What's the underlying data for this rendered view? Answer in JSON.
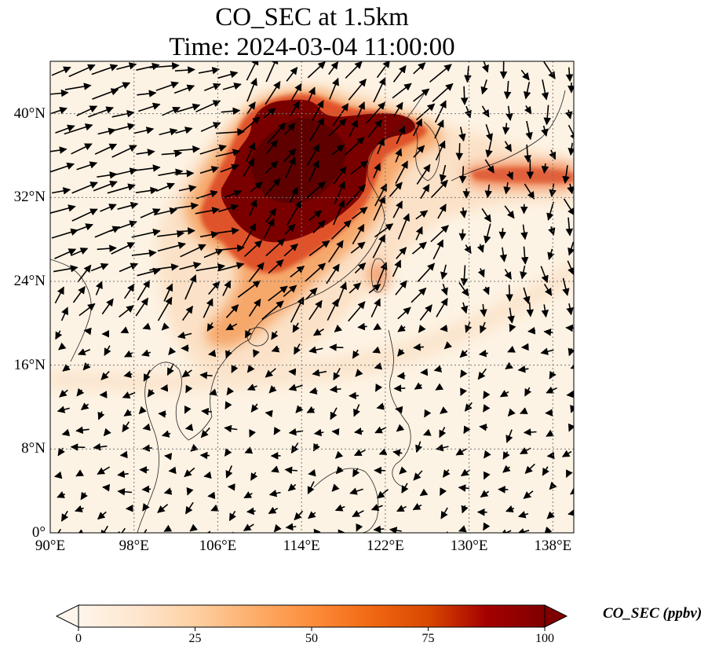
{
  "title": {
    "line1": "CO_SEC at 1.5km",
    "line2": "Time: 2024-03-04 11:00:00"
  },
  "map": {
    "lon_range": [
      90,
      140
    ],
    "lat_range": [
      0,
      45
    ],
    "y_ticks": [
      {
        "lat": 40,
        "label": "40°N"
      },
      {
        "lat": 32,
        "label": "32°N"
      },
      {
        "lat": 24,
        "label": "24°N"
      },
      {
        "lat": 16,
        "label": "16°N"
      },
      {
        "lat": 8,
        "label": "8°N"
      },
      {
        "lat": 0,
        "label": "0°"
      }
    ],
    "x_ticks": [
      {
        "lon": 90,
        "label": "90°E"
      },
      {
        "lon": 98,
        "label": "98°E"
      },
      {
        "lon": 106,
        "label": "106°E"
      },
      {
        "lon": 114,
        "label": "114°E"
      },
      {
        "lon": 122,
        "label": "122°E"
      },
      {
        "lon": 130,
        "label": "130°E"
      },
      {
        "lon": 138,
        "label": "138°E"
      }
    ],
    "gridlines": true,
    "plume_colors": {
      "low": "#fdf3e4",
      "mid": "#f6a76a",
      "high": "#e0532a",
      "max": "#7a0000"
    }
  },
  "colorbar": {
    "label": "CO_SEC (ppbv)",
    "range": [
      0,
      100
    ],
    "ticks": [
      {
        "value": 0,
        "label": "0"
      },
      {
        "value": 25,
        "label": "25"
      },
      {
        "value": 50,
        "label": "50"
      },
      {
        "value": 75,
        "label": "75"
      },
      {
        "value": 100,
        "label": "100"
      }
    ],
    "stops": [
      "#fff5eb",
      "#fee6ce",
      "#fdd0a2",
      "#fdae6b",
      "#fd8d3c",
      "#f16913",
      "#d94801",
      "#a50000",
      "#7f0000"
    ],
    "extend": "both"
  }
}
